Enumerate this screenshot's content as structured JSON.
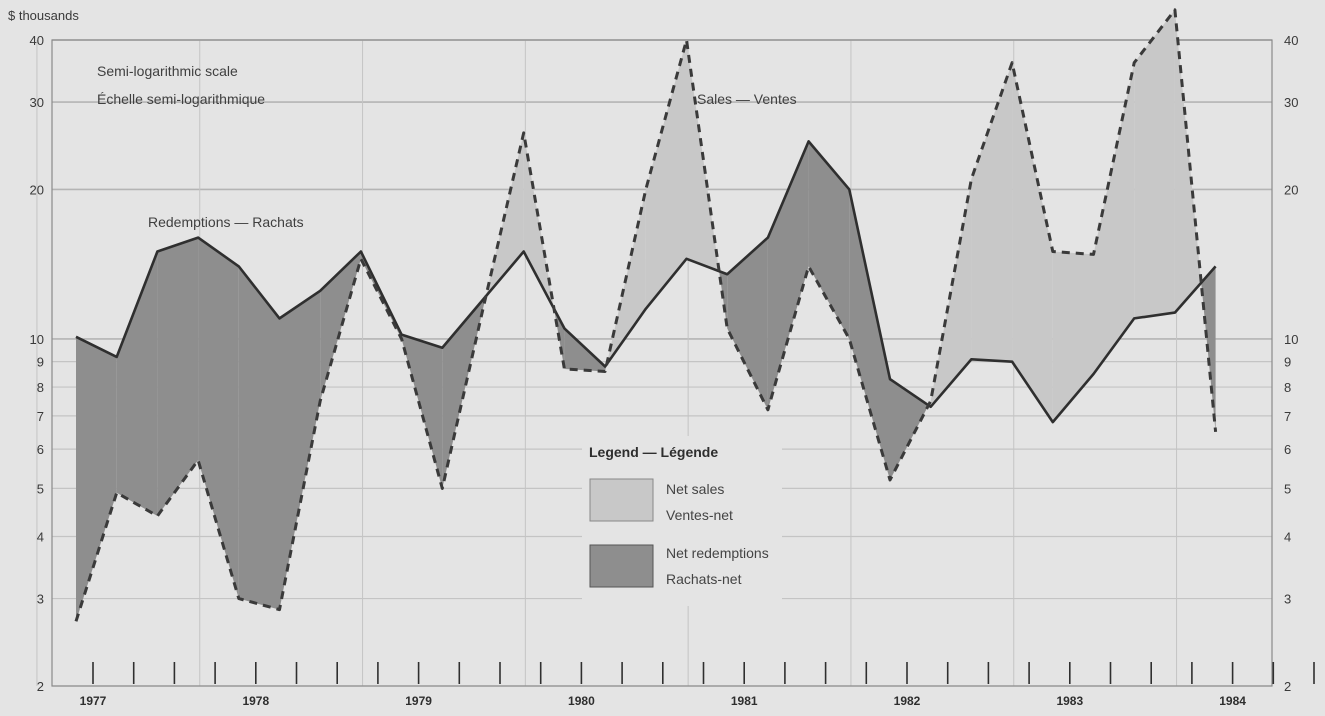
{
  "chart_data": {
    "type": "area",
    "title": "",
    "y_unit_label": "$ thousands",
    "y_scale": "log",
    "ylim": [
      2,
      40
    ],
    "y_ticks": [
      2,
      3,
      4,
      5,
      6,
      7,
      8,
      9,
      10,
      20,
      30,
      40
    ],
    "grid": true,
    "x_ticks": [
      "1977",
      "1978",
      "1979",
      "1980",
      "1981",
      "1982",
      "1983",
      "1984"
    ],
    "x_quarters": [
      "1977-Q1",
      "1977-Q2",
      "1977-Q3",
      "1977-Q4",
      "1978-Q1",
      "1978-Q2",
      "1978-Q3",
      "1978-Q4",
      "1979-Q1",
      "1979-Q2",
      "1979-Q3",
      "1979-Q4",
      "1980-Q1",
      "1980-Q2",
      "1980-Q3",
      "1980-Q4",
      "1981-Q1",
      "1981-Q2",
      "1981-Q3",
      "1981-Q4",
      "1982-Q1",
      "1982-Q2",
      "1982-Q3",
      "1982-Q4",
      "1983-Q1",
      "1983-Q2",
      "1983-Q3",
      "1983-Q4",
      "1984-Q1",
      "1984-Q2",
      "1984-Q3",
      "1984-Q4"
    ],
    "series": [
      {
        "name": "Sales — Ventes",
        "style": "dashed",
        "values": [
          2.7,
          4.9,
          4.4,
          5.7,
          3.0,
          2.85,
          7.5,
          14.5,
          10.0,
          5.0,
          11.5,
          26.0,
          8.7,
          8.6,
          20.0,
          40.0,
          10.5,
          7.2,
          14.0,
          10.0,
          5.2,
          7.5,
          21.0,
          36.0,
          15.0,
          14.8,
          36.0,
          46.0,
          6.5
        ]
      },
      {
        "name": "Redemptions — Rachats",
        "style": "solid",
        "values": [
          10.1,
          9.2,
          15.0,
          16.0,
          14.0,
          11.0,
          12.5,
          15.0,
          10.2,
          9.6,
          12.0,
          15.0,
          10.5,
          8.8,
          11.5,
          14.5,
          13.5,
          16.0,
          25.0,
          20.0,
          8.3,
          7.3,
          9.1,
          9.0,
          6.8,
          8.5,
          11.0,
          11.3,
          14.0
        ]
      }
    ],
    "annotations": [
      "Semi-logarithmic scale",
      "Échelle semi-logarithmique",
      "Sales — Ventes",
      "Redemptions — Rachats"
    ],
    "legend": {
      "title": "Legend — Légende",
      "position": "center",
      "items": [
        {
          "label_en": "Net sales",
          "label_fr": "Ventes-net",
          "color": "#c8c8c8"
        },
        {
          "label_en": "Net redemptions",
          "label_fr": "Rachats-net",
          "color": "#8e8e8e"
        }
      ]
    },
    "colors": {
      "net_sales": "#c8c8c8",
      "net_redemptions": "#8e8e8e",
      "line": "#333333",
      "grid": "#bdbdbd"
    }
  }
}
